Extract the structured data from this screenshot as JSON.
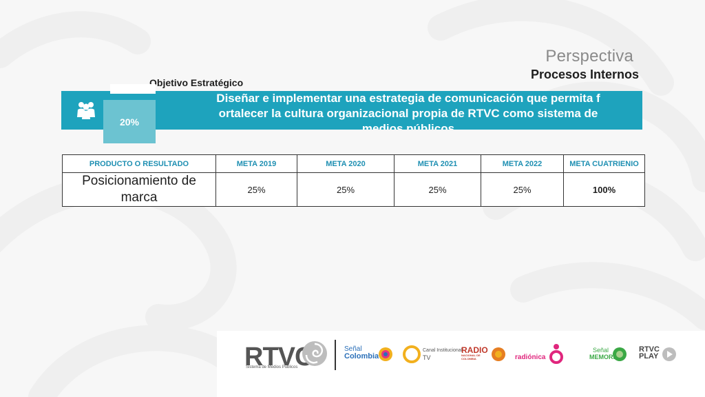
{
  "perspective": {
    "title": "Perspectiva",
    "subtitle": "Procesos Internos"
  },
  "objective": {
    "label": "Objetivo Estratégico",
    "weight": "20%",
    "text_lines": [
      "Diseñar e implementar una estrategia de comunicación que permita f",
      "ortalecer   la cultura organizacional propia de RTVC como sistema de",
      "medios públicos"
    ],
    "icon": "people-icon"
  },
  "table": {
    "headers": [
      "PRODUCTO O RESULTADO",
      "META 2019",
      "META 2020",
      "META 2021",
      "META 2022",
      "META CUATRIENIO"
    ],
    "rows": [
      [
        "Posicionamiento de marca",
        "25%",
        "25%",
        "25%",
        "25%",
        "100%"
      ]
    ]
  },
  "footer": {
    "logo_text": "RTVC",
    "logo_tagline": "Sistema de Medios Públicos",
    "brands": [
      {
        "top": "Señal",
        "bottom": "Colombia",
        "color": "#2a6fb8"
      },
      {
        "top": "Canal Institucional",
        "bottom": "TV",
        "color": "#555555"
      },
      {
        "top": "RADIO",
        "bottom": "NACIONAL DE COLOMBIA",
        "color": "#c0392b"
      },
      {
        "top": "",
        "bottom": "radiónica",
        "color": "#e0267d"
      },
      {
        "top": "Señal",
        "bottom": "MEMORIA",
        "color": "#3aa845"
      },
      {
        "top": "RTVC",
        "bottom": "PLAY",
        "color": "#444444"
      }
    ]
  },
  "colors": {
    "teal": "#1ea3bd",
    "light_teal": "#6cc3d1",
    "header_text": "#1e8fb2"
  }
}
